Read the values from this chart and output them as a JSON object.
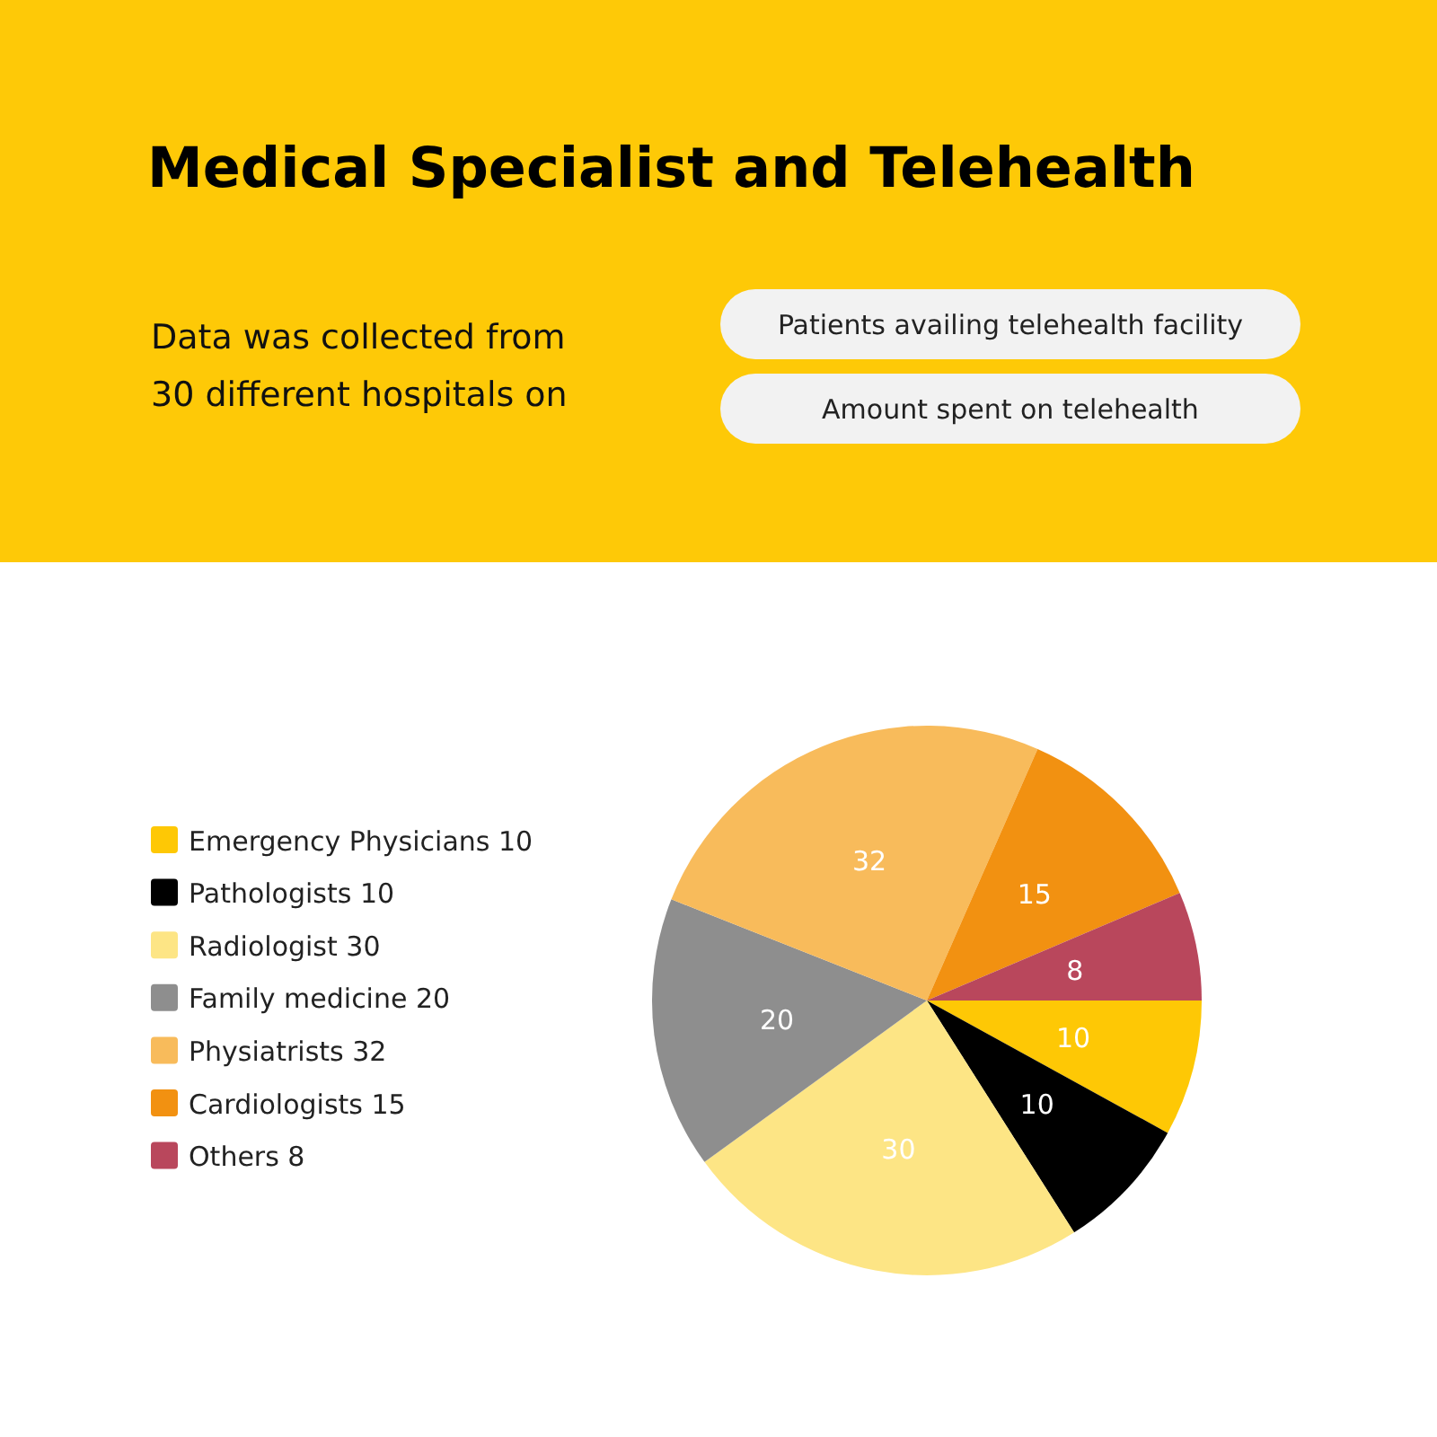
{
  "chart_data": {
    "type": "pie",
    "title": "Medical Specialist and Telehealth",
    "subtitle": "Data was collected from 30 different hospitals on",
    "annotations": [
      "Patients availing telehealth facility",
      "Amount spent on telehealth"
    ],
    "categories": [
      "Emergency Physicians 10",
      "Pathologists 10",
      "Radiologist 30",
      "Family medicine 20",
      "Physiatrists 32",
      "Cardiologists 15",
      "Others 8"
    ],
    "values": [
      10,
      10,
      30,
      20,
      32,
      15,
      8
    ],
    "colors": [
      "#fec805",
      "#000000",
      "#fde585",
      "#8e8e8e",
      "#f8bb5b",
      "#f29111",
      "#b9475c"
    ],
    "data_labels": true,
    "legend": "left"
  }
}
